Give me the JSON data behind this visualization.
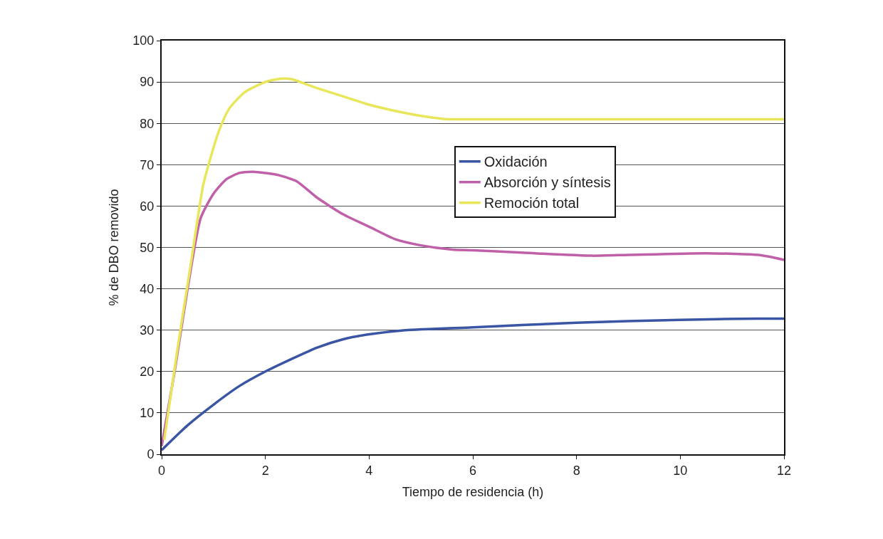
{
  "chart_data": {
    "type": "line",
    "xlabel": "Tiempo de residencia (h)",
    "ylabel": "% de DBO removido",
    "xlim": [
      0,
      12
    ],
    "xticks": [
      0,
      2,
      4,
      6,
      8,
      10,
      12
    ],
    "ylim": [
      0,
      100
    ],
    "yticks": [
      0,
      10,
      20,
      30,
      40,
      50,
      60,
      70,
      80,
      90,
      100
    ],
    "grid": "y",
    "legend": "top right",
    "marker": "none",
    "line_style": "solid",
    "series": [
      {
        "name": "Oxidación",
        "color": "#3a55a4",
        "x": [
          0,
          0.5,
          1,
          1.5,
          2,
          2.5,
          3,
          3.5,
          4,
          4.7,
          6,
          8,
          10,
          11.5,
          12
        ],
        "values": [
          1,
          7,
          12,
          16.5,
          20,
          23,
          25.8,
          27.8,
          29,
          30,
          30.7,
          31.8,
          32.5,
          32.8,
          32.8
        ]
      },
      {
        "name": "Absorción y síntesis",
        "color": "#c060a8",
        "x": [
          0,
          0.25,
          0.5,
          0.75,
          1,
          1.25,
          1.5,
          1.75,
          2,
          2.25,
          2.6,
          3,
          3.5,
          4,
          4.5,
          5,
          5.6,
          6,
          7,
          8.3,
          9,
          10.5,
          11.5,
          11.7,
          12
        ],
        "values": [
          2,
          20,
          40,
          57,
          63,
          66.5,
          68,
          68.3,
          68,
          67.5,
          66,
          62,
          58,
          55,
          52,
          50.5,
          49.5,
          49.3,
          48.7,
          48,
          48.2,
          48.6,
          48.2,
          47.8,
          47
        ]
      },
      {
        "name": "Remoción total",
        "color": "#e8e65a",
        "x": [
          0.05,
          0.3,
          0.55,
          0.8,
          0.95,
          1.1,
          1.3,
          1.6,
          2,
          2.3,
          2.5,
          3,
          3.5,
          4,
          4.5,
          5,
          5.5,
          6,
          12
        ],
        "values": [
          3.5,
          25,
          45,
          65,
          72,
          78,
          83.5,
          87.5,
          90,
          90.8,
          90.7,
          88.5,
          86.5,
          84.5,
          83,
          81.8,
          81,
          81,
          81
        ]
      }
    ]
  }
}
